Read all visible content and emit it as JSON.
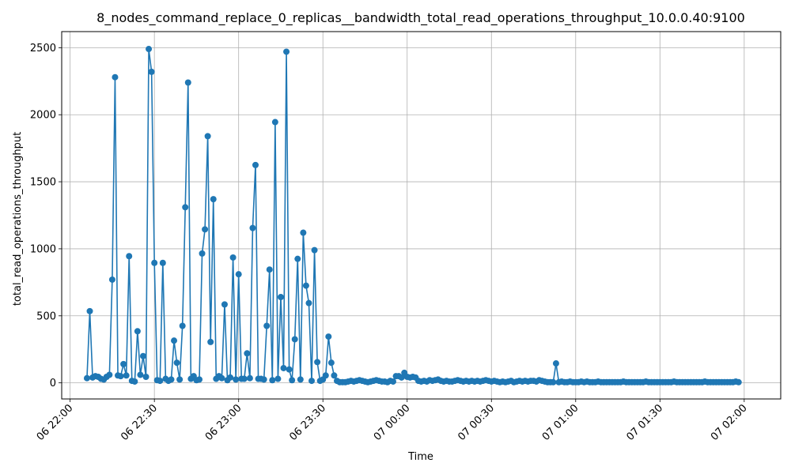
{
  "chart_data": {
    "type": "line",
    "title": "8_nodes_command_replace_0_replicas__bandwidth_total_read_operations_throughput_10.0.0.40:9100",
    "xlabel": "Time",
    "ylabel": "total_read_operations_throughput",
    "grid": true,
    "marker": "circle",
    "color": "#1f77b4",
    "x_range": [
      "2024-01-06 21:57",
      "2024-01-07 02:13"
    ],
    "ylim": [
      -120,
      2620
    ],
    "yticks": [
      0,
      500,
      1000,
      1500,
      2000,
      2500
    ],
    "ytick_labels": [
      "0",
      "500",
      "1000",
      "1500",
      "2000",
      "2500"
    ],
    "xticks": [
      "2024-01-06 22:00",
      "2024-01-06 22:30",
      "2024-01-06 23:00",
      "2024-01-06 23:30",
      "2024-01-07 00:00",
      "2024-01-07 00:30",
      "2024-01-07 01:00",
      "2024-01-07 01:30",
      "2024-01-07 02:00"
    ],
    "xtick_labels": [
      "06 22:00",
      "06 22:30",
      "06 23:00",
      "06 23:30",
      "07 00:00",
      "07 00:30",
      "07 01:00",
      "07 01:30",
      "07 02:00"
    ],
    "series": [
      {
        "x_start": "2024-01-06 22:06",
        "x_step_minutes": 1,
        "values": [
          35,
          535,
          40,
          50,
          45,
          30,
          25,
          45,
          60,
          770,
          2280,
          55,
          50,
          140,
          55,
          945,
          15,
          10,
          385,
          60,
          200,
          45,
          2490,
          2320,
          895,
          20,
          15,
          895,
          30,
          15,
          25,
          315,
          150,
          25,
          425,
          1310,
          2240,
          30,
          50,
          20,
          25,
          965,
          1145,
          1840,
          305,
          1370,
          30,
          50,
          35,
          585,
          20,
          40,
          935,
          25,
          810,
          30,
          30,
          220,
          35,
          1155,
          1625,
          30,
          30,
          25,
          425,
          845,
          20,
          1945,
          30,
          640,
          110,
          2470,
          100,
          20,
          325,
          925,
          25,
          1120,
          725,
          595,
          15,
          990,
          155,
          15,
          25,
          55,
          345,
          150,
          55,
          15,
          5,
          5,
          5,
          10,
          15,
          10,
          15,
          20,
          15,
          10,
          5,
          10,
          15,
          20,
          15,
          10,
          10,
          5,
          15,
          10,
          50,
          50,
          40,
          75,
          45,
          40,
          45,
          40,
          15,
          10,
          15,
          10,
          20,
          15,
          20,
          25,
          15,
          10,
          15,
          10,
          10,
          15,
          20,
          15,
          10,
          15,
          10,
          15,
          10,
          15,
          10,
          15,
          20,
          15,
          10,
          15,
          10,
          5,
          10,
          5,
          10,
          15,
          5,
          10,
          15,
          10,
          15,
          10,
          15,
          15,
          10,
          20,
          15,
          10,
          5,
          5,
          5,
          145,
          5,
          10,
          5,
          5,
          10,
          5,
          5,
          5,
          10,
          5,
          10,
          5,
          5,
          5,
          10,
          5,
          5,
          5,
          5,
          5,
          5,
          5,
          5,
          10,
          5,
          5,
          5,
          5,
          5,
          5,
          5,
          10,
          5,
          5,
          5,
          5,
          5,
          5,
          5,
          5,
          5,
          10,
          5,
          5,
          5,
          5,
          5,
          5,
          5,
          5,
          5,
          5,
          10,
          5,
          5,
          5,
          5,
          5,
          5,
          5,
          5,
          5,
          5,
          10,
          5
        ]
      }
    ]
  }
}
